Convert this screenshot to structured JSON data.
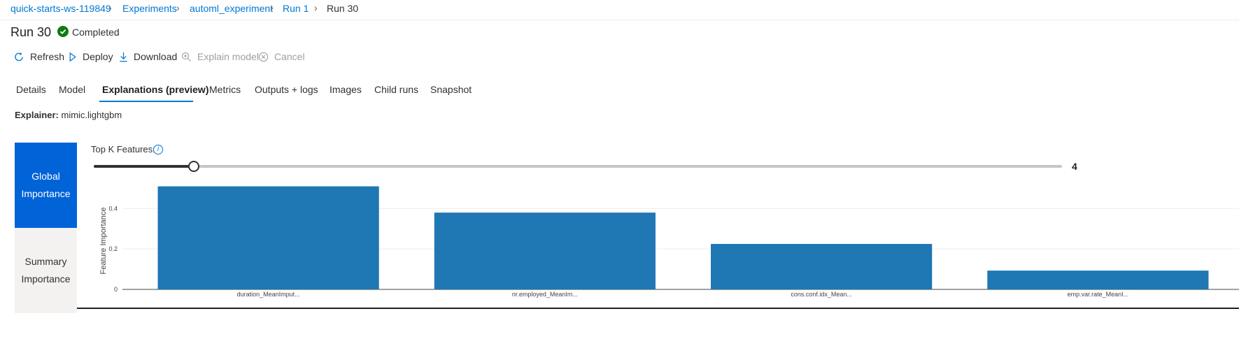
{
  "breadcrumb": {
    "items": [
      "quick-starts-ws-119849",
      "Experiments",
      "automl_experiment",
      "Run 1",
      "Run 30"
    ]
  },
  "header": {
    "title": "Run 30",
    "status": "Completed",
    "status_color": "#107c10"
  },
  "toolbar": {
    "refresh": "Refresh",
    "deploy": "Deploy",
    "download": "Download",
    "explain_model": "Explain model",
    "cancel": "Cancel"
  },
  "tabs": {
    "details": "Details",
    "model": "Model",
    "explanations": "Explanations (preview)",
    "metrics": "Metrics",
    "outputs_logs": "Outputs + logs",
    "images": "Images",
    "child_runs": "Child runs",
    "snapshot": "Snapshot",
    "active": "Explanations (preview)"
  },
  "explainer": {
    "label": "Explainer:",
    "value": "mimic.lightgbm"
  },
  "side_nav": {
    "global_importance": "Global Importance",
    "summary_importance": "Summary Importance",
    "accent_color": "#0063d8"
  },
  "top_k": {
    "label": "Top K Features:",
    "info_icon": "i",
    "value": "4",
    "slider_fraction": 0.103
  },
  "chart_data": {
    "type": "bar",
    "categories": [
      "duration_MeanImput...",
      "nr.employed_MeanIm...",
      "cons.conf.idx_Mean...",
      "emp.var.rate_MeanI..."
    ],
    "values": [
      0.51,
      0.38,
      0.225,
      0.093
    ],
    "ylabel": "Feature Importance",
    "yticks": [
      "0",
      "0.2",
      "0.4"
    ],
    "ylim": [
      0,
      0.55
    ],
    "bar_color": "#1f77b4",
    "grid": true
  }
}
